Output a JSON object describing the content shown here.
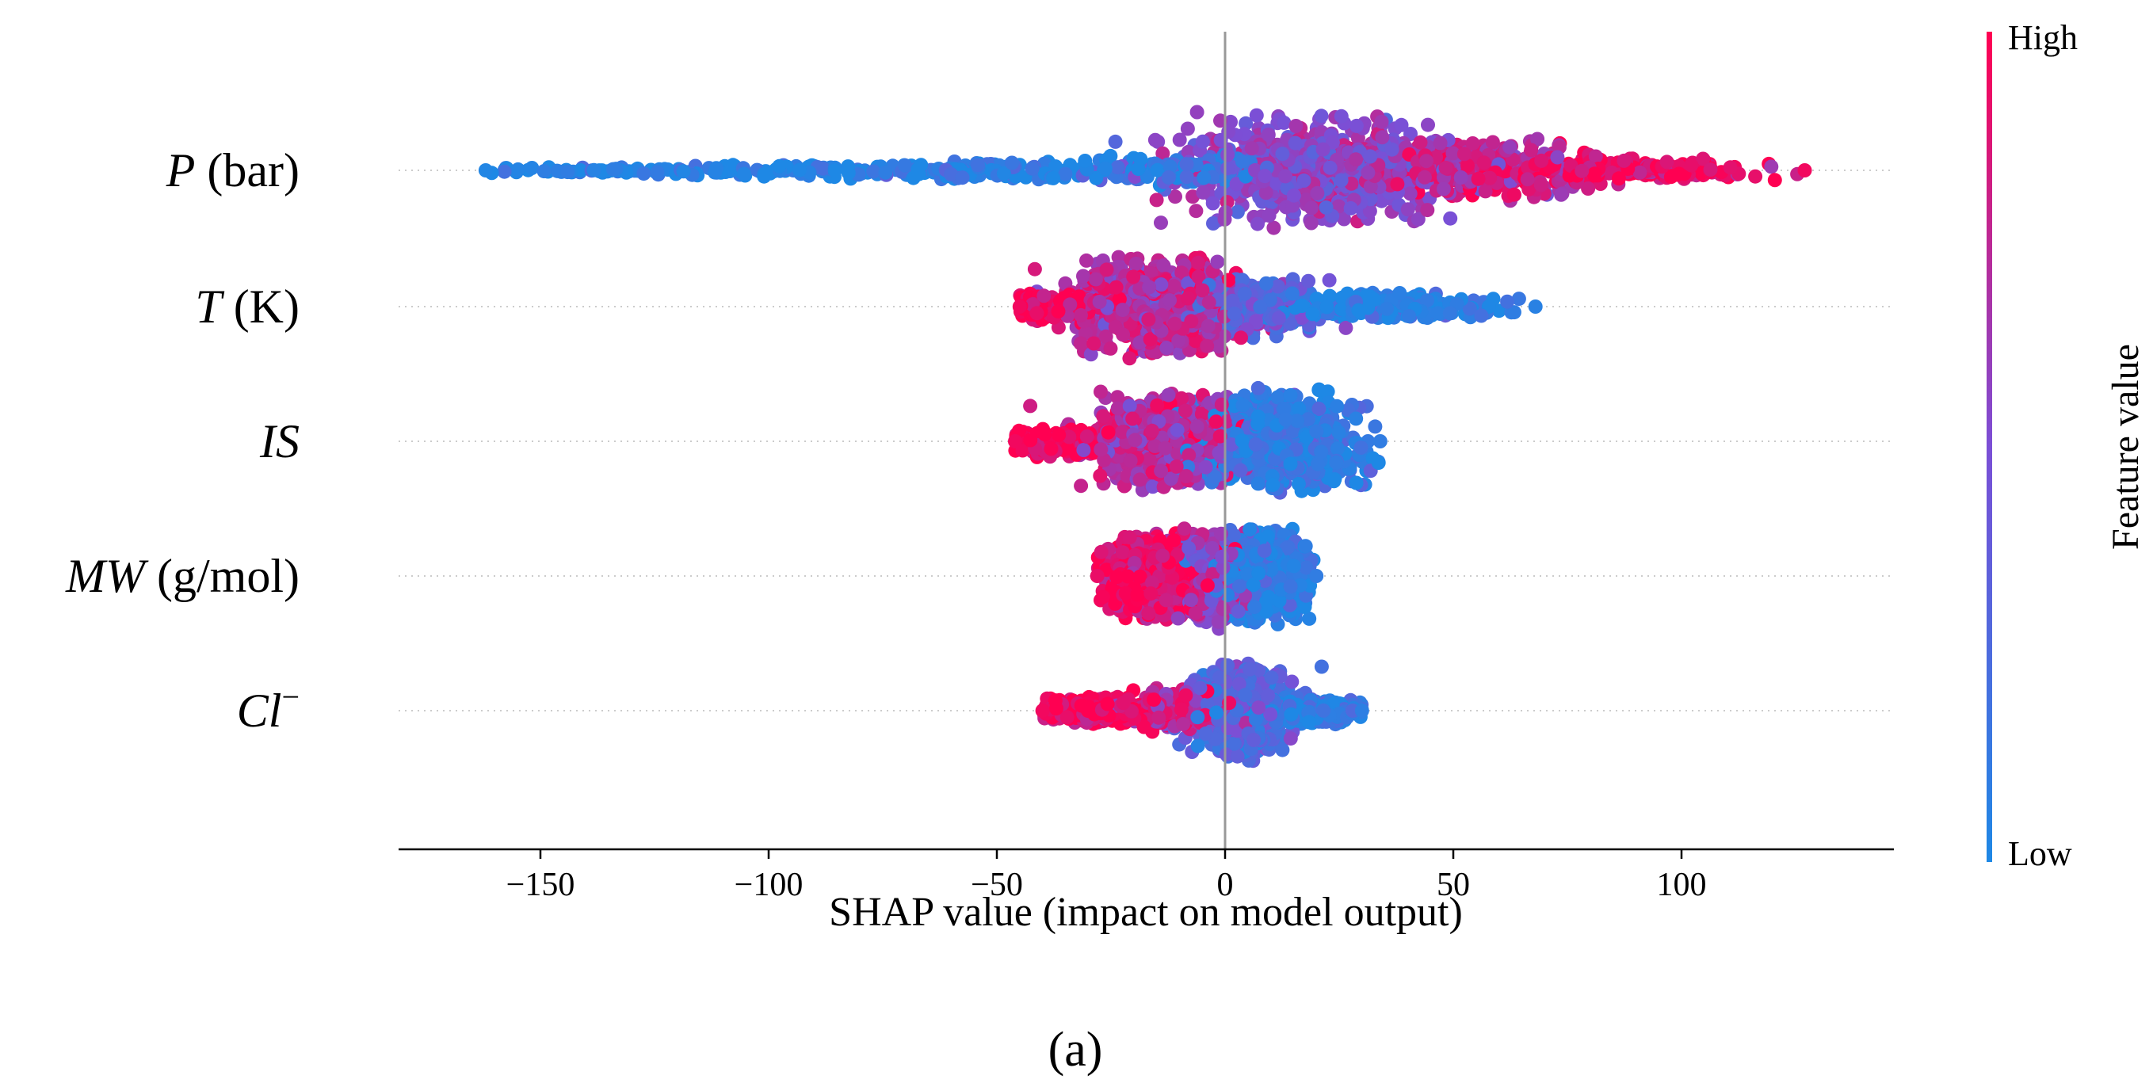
{
  "chart_data": {
    "type": "scatter",
    "subtype": "shap-beeswarm",
    "xlabel": "SHAP value (impact on model output)",
    "xlim": [
      -180,
      148
    ],
    "xticks": [
      -150,
      -100,
      -50,
      0,
      50,
      100
    ],
    "xtick_labels": [
      "−150",
      "−100",
      "−50",
      "0",
      "50",
      "100"
    ],
    "features": [
      {
        "label_main": "P",
        "label_suffix": " (bar)",
        "min": -162,
        "max": 127,
        "count": 1500,
        "segments": [
          {
            "x": -140,
            "width": 24,
            "spread": 0.06,
            "color_value": 0.02
          },
          {
            "x": -100,
            "width": 28,
            "spread": 0.12,
            "color_value": 0.03
          },
          {
            "x": -55,
            "width": 26,
            "spread": 0.2,
            "color_value": 0.05
          },
          {
            "x": -10,
            "width": 18,
            "spread": 0.28,
            "color_value": 0.1
          },
          {
            "x": 20,
            "width": 22,
            "spread": 1.0,
            "color_value": 0.55
          },
          {
            "x": 55,
            "width": 22,
            "spread": 0.55,
            "color_value": 0.8
          },
          {
            "x": 90,
            "width": 24,
            "spread": 0.2,
            "color_value": 0.95
          }
        ]
      },
      {
        "label_main": "T",
        "label_suffix": " (K)",
        "min": -45,
        "max": 68,
        "count": 1500,
        "segments": [
          {
            "x": -38,
            "width": 12,
            "spread": 0.25,
            "color_value": 0.95
          },
          {
            "x": -15,
            "width": 14,
            "spread": 0.9,
            "color_value": 0.75
          },
          {
            "x": 5,
            "width": 12,
            "spread": 0.55,
            "color_value": 0.35
          },
          {
            "x": 35,
            "width": 18,
            "spread": 0.25,
            "color_value": 0.06
          }
        ]
      },
      {
        "label_main": "IS",
        "label_suffix": "",
        "min": -46,
        "max": 34,
        "count": 1500,
        "segments": [
          {
            "x": -38,
            "width": 10,
            "spread": 0.3,
            "color_value": 0.95
          },
          {
            "x": -13,
            "width": 12,
            "spread": 0.85,
            "color_value": 0.72
          },
          {
            "x": 12,
            "width": 14,
            "spread": 0.9,
            "color_value": 0.1
          }
        ]
      },
      {
        "label_main": "MW",
        "label_suffix": " (g/mol)",
        "min": -28,
        "max": 20,
        "count": 1500,
        "segments": [
          {
            "x": -15,
            "width": 9,
            "spread": 0.8,
            "color_value": 0.92
          },
          {
            "x": -3,
            "width": 6,
            "spread": 0.9,
            "color_value": 0.6
          },
          {
            "x": 8,
            "width": 9,
            "spread": 0.85,
            "color_value": 0.1
          }
        ]
      },
      {
        "label_main": "Cl",
        "label_sup": "−",
        "label_suffix": "",
        "min": -40,
        "max": 30,
        "count": 1500,
        "segments": [
          {
            "x": -27,
            "width": 13,
            "spread": 0.25,
            "color_value": 0.95
          },
          {
            "x": -7,
            "width": 9,
            "spread": 0.4,
            "color_value": 0.8
          },
          {
            "x": 3,
            "width": 8,
            "spread": 0.85,
            "color_value": 0.3
          },
          {
            "x": 18,
            "width": 11,
            "spread": 0.25,
            "color_value": 0.08
          }
        ]
      }
    ],
    "colorbar": {
      "title": "Feature value",
      "high_label": "High",
      "low_label": "Low",
      "low_color": "#1e88e5",
      "mid_color": "#7b4fd6",
      "high_color": "#ff0052"
    },
    "panel_label": "(a)",
    "zero_line_color": "#999999",
    "grid_line_color": "#cccccc"
  }
}
